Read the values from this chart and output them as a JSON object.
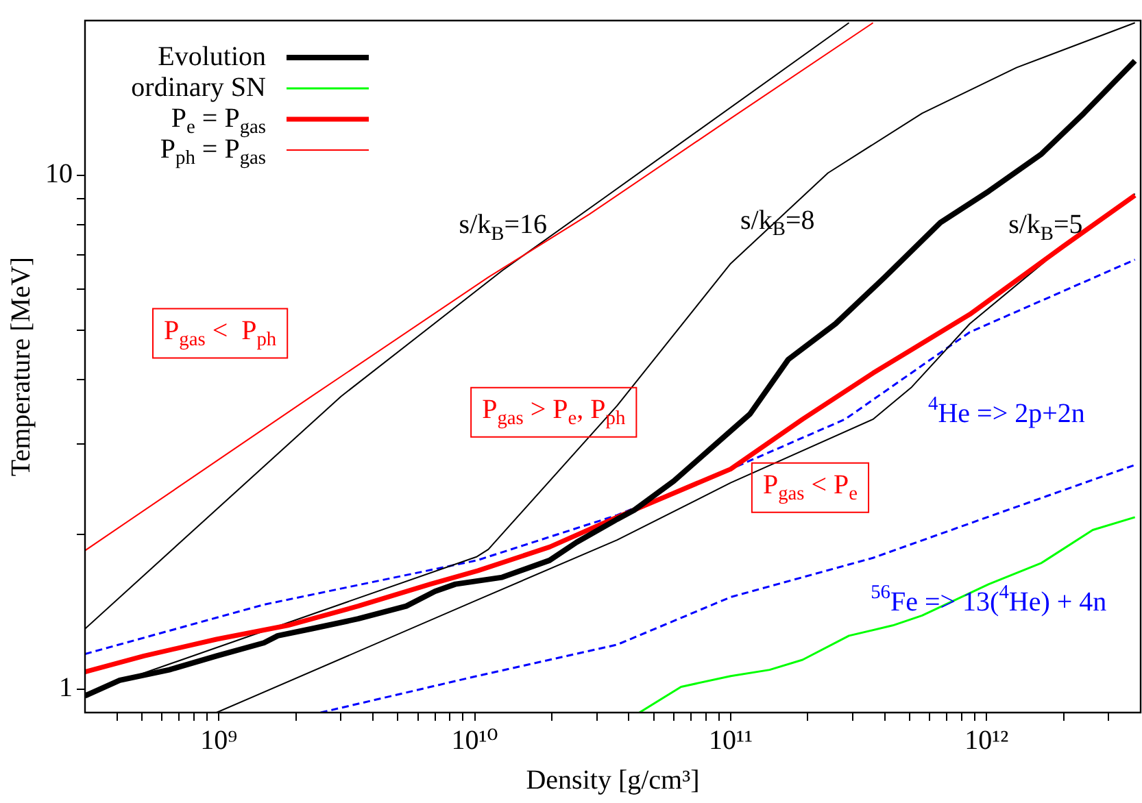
{
  "chart_data": {
    "type": "line",
    "xlabel": "Density [g/cm³]",
    "ylabel": "Temperature [MeV]",
    "log": "xy",
    "xlim": [
      300000000.0,
      4000000000000.0
    ],
    "ylim": [
      0.9,
      20
    ],
    "xticks": [
      {
        "value": 400000000.0,
        "label": null
      },
      {
        "value": 500000000.0,
        "label": null
      },
      {
        "value": 600000000.0,
        "label": null
      },
      {
        "value": 700000000.0,
        "label": null
      },
      {
        "value": 800000000.0,
        "label": null
      },
      {
        "value": 900000000.0,
        "label": null
      },
      {
        "value": 1000000000.0,
        "label": "10⁹"
      },
      {
        "value": 2000000000.0,
        "label": null
      },
      {
        "value": 3000000000.0,
        "label": null
      },
      {
        "value": 4000000000.0,
        "label": null
      },
      {
        "value": 5000000000.0,
        "label": null
      },
      {
        "value": 6000000000.0,
        "label": null
      },
      {
        "value": 7000000000.0,
        "label": null
      },
      {
        "value": 8000000000.0,
        "label": null
      },
      {
        "value": 9000000000.0,
        "label": null
      },
      {
        "value": 10000000000.0,
        "label": "10¹⁰"
      },
      {
        "value": 20000000000.0,
        "label": null
      },
      {
        "value": 30000000000.0,
        "label": null
      },
      {
        "value": 40000000000.0,
        "label": null
      },
      {
        "value": 50000000000.0,
        "label": null
      },
      {
        "value": 60000000000.0,
        "label": null
      },
      {
        "value": 70000000000.0,
        "label": null
      },
      {
        "value": 80000000000.0,
        "label": null
      },
      {
        "value": 90000000000.0,
        "label": null
      },
      {
        "value": 100000000000.0,
        "label": "10¹¹"
      },
      {
        "value": 200000000000.0,
        "label": null
      },
      {
        "value": 300000000000.0,
        "label": null
      },
      {
        "value": 400000000000.0,
        "label": null
      },
      {
        "value": 500000000000.0,
        "label": null
      },
      {
        "value": 600000000000.0,
        "label": null
      },
      {
        "value": 700000000000.0,
        "label": null
      },
      {
        "value": 800000000000.0,
        "label": null
      },
      {
        "value": 900000000000.0,
        "label": null
      },
      {
        "value": 1000000000000.0,
        "label": "10¹²"
      },
      {
        "value": 2000000000000.0,
        "label": null
      },
      {
        "value": 3000000000000.0,
        "label": null
      }
    ],
    "yticks": [
      1,
      {
        "value": 2,
        "label": null
      },
      {
        "value": 3,
        "label": null
      },
      {
        "value": 4,
        "label": null
      },
      {
        "value": 5,
        "label": null
      },
      {
        "value": 6,
        "label": null
      },
      {
        "value": 7,
        "label": null
      },
      {
        "value": 8,
        "label": null
      },
      {
        "value": 9,
        "label": null
      },
      10
    ],
    "legend": "top left",
    "marker": "none",
    "series": [
      {
        "name": "Evolution",
        "color": "#000000",
        "x": [
          300000000.0,
          410000000.0,
          640000000.0,
          980000000.0,
          1500000000.0,
          1700000000.0,
          2300000000.0,
          3500000000.0,
          5400000000.0,
          7000000000.0,
          8400000000.0,
          12800000000.0,
          19600000000.0,
          25000000000.0,
          36000000000.0,
          42000000000.0,
          60000000000.0,
          85000000000.0,
          119000000000.0,
          168000000000.0,
          257000000000.0,
          400000000000.0,
          660000000000.0,
          1020000000000.0,
          1640000000000.0,
          2400000000000.0,
          3800000000000.0
        ],
        "values": [
          0.97,
          1.04,
          1.09,
          1.16,
          1.23,
          1.27,
          1.31,
          1.37,
          1.45,
          1.55,
          1.6,
          1.65,
          1.78,
          1.93,
          2.14,
          2.23,
          2.54,
          2.96,
          3.43,
          4.38,
          5.14,
          6.33,
          8.09,
          9.31,
          11.0,
          13.2,
          16.7
        ]
      },
      {
        "name": "ordinary SN",
        "color": "#00ff00",
        "x": [
          44000000000.0,
          64000000000.0,
          100000000000.0,
          142000000000.0,
          191000000000.0,
          290000000000.0,
          430000000000.0,
          560000000000.0,
          1020000000000.0,
          1640000000000.0,
          2600000000000.0,
          3800000000000.0
        ],
        "values": [
          0.9,
          1.01,
          1.06,
          1.09,
          1.14,
          1.27,
          1.33,
          1.39,
          1.6,
          1.76,
          2.04,
          2.16
        ]
      },
      {
        "name": "P$_{e}$ = P$_{gas}$",
        "color": "#ff0000",
        "x": [
          300000000.0,
          510000000.0,
          980000000.0,
          1860000000.0,
          3500000000.0,
          6700000000.0,
          10300000000.0,
          19600000000.0,
          36000000000.0,
          100000000000.0,
          191000000000.0,
          360000000000.0,
          860000000000.0,
          2000000000000.0,
          3800000000000.0
        ],
        "values": [
          1.08,
          1.16,
          1.25,
          1.33,
          1.45,
          1.6,
          1.7,
          1.89,
          2.16,
          2.68,
          3.35,
          4.12,
          5.36,
          7.28,
          9.14
        ]
      },
      {
        "name": "P$_{ph}$ = P$_{gas}$",
        "color": "#ff0000",
        "x": [
          300000000.0,
          2300000000.0,
          11300000000.0,
          28000000000.0,
          100000000000.0,
          360000000000.0
        ],
        "values": [
          1.86,
          3.71,
          6.33,
          8.39,
          12.9,
          19.8
        ]
      },
      {
        "color": "#000000",
        "x": [
          300000000.0,
          3000000000.0,
          12800000000.0,
          32000000000.0,
          290000000000.0
        ],
        "values": [
          1.31,
          3.71,
          6.52,
          9.03,
          19.8
        ]
      },
      {
        "color": "#000000",
        "x": [
          300000000.0,
          10200000000.0,
          11300000000.0,
          36000000000.0,
          100000000000.0,
          240000000000.0,
          560000000000.0,
          1310000000000.0,
          3800000000000.0
        ],
        "values": [
          0.98,
          1.81,
          1.87,
          3.56,
          6.73,
          10.1,
          13.2,
          16.2,
          19.8
        ]
      },
      {
        "color": "#000000",
        "x": [
          980000000.0,
          10200000000.0,
          36000000000.0,
          100000000000.0,
          360000000000.0,
          510000000000.0,
          860000000000.0,
          2000000000000.0,
          3800000000000.0
        ],
        "values": [
          0.9,
          1.49,
          1.95,
          2.52,
          3.35,
          3.87,
          5.14,
          7.28,
          9.2
        ]
      },
      {
        "color": "#0000ff",
        "line_style": "dashed",
        "x": [
          300000000.0,
          1500000000.0,
          10200000000.0,
          36000000000.0,
          100000000000.0,
          280000000000.0,
          860000000000.0,
          3800000000000.0
        ],
        "values": [
          1.17,
          1.46,
          1.78,
          2.18,
          2.68,
          3.35,
          4.95,
          6.85
        ]
      },
      {
        "color": "#0000ff",
        "line_style": "dashed",
        "x": [
          2500000000.0,
          10200000000.0,
          36000000000.0,
          100000000000.0,
          360000000000.0,
          1060000000000.0,
          3800000000000.0
        ],
        "values": [
          0.9,
          1.06,
          1.22,
          1.51,
          1.8,
          2.18,
          2.73
        ]
      }
    ],
    "annotations": [
      "s/k$_{B}$=16",
      "s/k$_{B}$=8",
      "s/k$_{B}$=5",
      "P$_{gas}$ <  P$_{ph}$",
      "P$_{gas}$ > P$_{e}$, P$_{ph}$",
      "P$_{gas}$ < P$_{e}$",
      "$^{4}$He => 2p+2n",
      "$^{56}$Fe => 13($^{4}$He) + 4n"
    ]
  }
}
